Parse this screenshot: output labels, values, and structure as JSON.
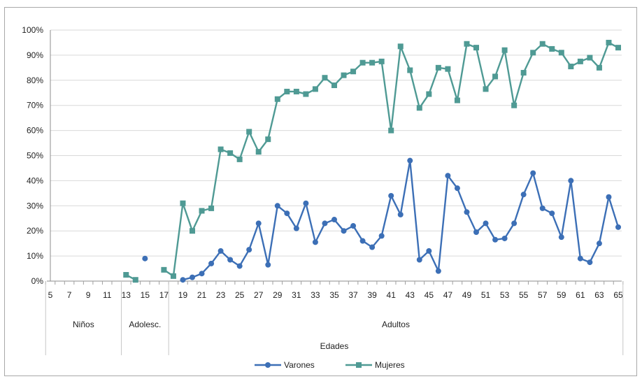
{
  "chart_data": {
    "type": "line",
    "title": "",
    "xlabel": "Edades",
    "ylabel": "",
    "x": [
      5,
      6,
      7,
      8,
      9,
      10,
      11,
      12,
      13,
      14,
      15,
      16,
      17,
      18,
      19,
      20,
      21,
      22,
      23,
      24,
      25,
      26,
      27,
      28,
      29,
      30,
      31,
      32,
      33,
      34,
      35,
      36,
      37,
      38,
      39,
      40,
      41,
      42,
      43,
      44,
      45,
      46,
      47,
      48,
      49,
      50,
      51,
      52,
      53,
      54,
      55,
      56,
      57,
      58,
      59,
      60,
      61,
      62,
      63,
      64,
      65
    ],
    "x_tick_labels": [
      "5",
      "7",
      "9",
      "11",
      "13",
      "15",
      "17",
      "19",
      "21",
      "23",
      "25",
      "27",
      "29",
      "31",
      "33",
      "35",
      "37",
      "39",
      "41",
      "43",
      "45",
      "47",
      "49",
      "51",
      "53",
      "55",
      "57",
      "59",
      "61",
      "63",
      "65"
    ],
    "groups": [
      {
        "label": "Niños",
        "from": 5,
        "to": 12
      },
      {
        "label": "Adolesc.",
        "from": 13,
        "to": 17
      },
      {
        "label": "Adultos",
        "from": 18,
        "to": 65
      }
    ],
    "ylim": [
      0,
      100
    ],
    "y_ticks": [
      0,
      10,
      20,
      30,
      40,
      50,
      60,
      70,
      80,
      90,
      100
    ],
    "y_tick_labels": [
      "0%",
      "10%",
      "20%",
      "30%",
      "40%",
      "50%",
      "60%",
      "70%",
      "80%",
      "90%",
      "100%"
    ],
    "grid": "horizontal",
    "legend_position": "bottom",
    "series": [
      {
        "name": "Varones",
        "color": "#3c6fb6",
        "marker": "circle",
        "values": [
          null,
          null,
          null,
          null,
          null,
          null,
          null,
          null,
          null,
          null,
          9,
          null,
          null,
          null,
          0.5,
          1.5,
          3,
          7,
          12,
          8.5,
          6,
          12.5,
          23,
          6.5,
          30,
          27,
          21,
          31,
          15.5,
          23,
          24.5,
          20,
          22,
          16,
          13.5,
          18,
          34,
          26.5,
          48,
          8.5,
          12,
          4,
          42,
          37,
          27.5,
          19.5,
          23,
          16.5,
          17,
          23,
          34.5,
          43,
          29,
          27,
          17.5,
          40,
          9,
          7.5,
          15,
          33.5,
          21.5
        ]
      },
      {
        "name": "Mujeres",
        "color": "#4f9a94",
        "marker": "square",
        "values": [
          null,
          null,
          null,
          null,
          null,
          null,
          null,
          null,
          2.5,
          0.5,
          null,
          null,
          4.5,
          2,
          31,
          20,
          28,
          29,
          52.5,
          51,
          48.5,
          59.5,
          51.5,
          56.5,
          72.5,
          75.5,
          75.5,
          74.5,
          76.5,
          81,
          78,
          82,
          83.5,
          87,
          87,
          87.5,
          60,
          93.5,
          84,
          69,
          74.5,
          85,
          84.5,
          72,
          94.5,
          93,
          76.5,
          81.5,
          92,
          70,
          83,
          91,
          94.5,
          92.5,
          91,
          85.5,
          87.5,
          89,
          85,
          95,
          93
        ]
      }
    ]
  }
}
